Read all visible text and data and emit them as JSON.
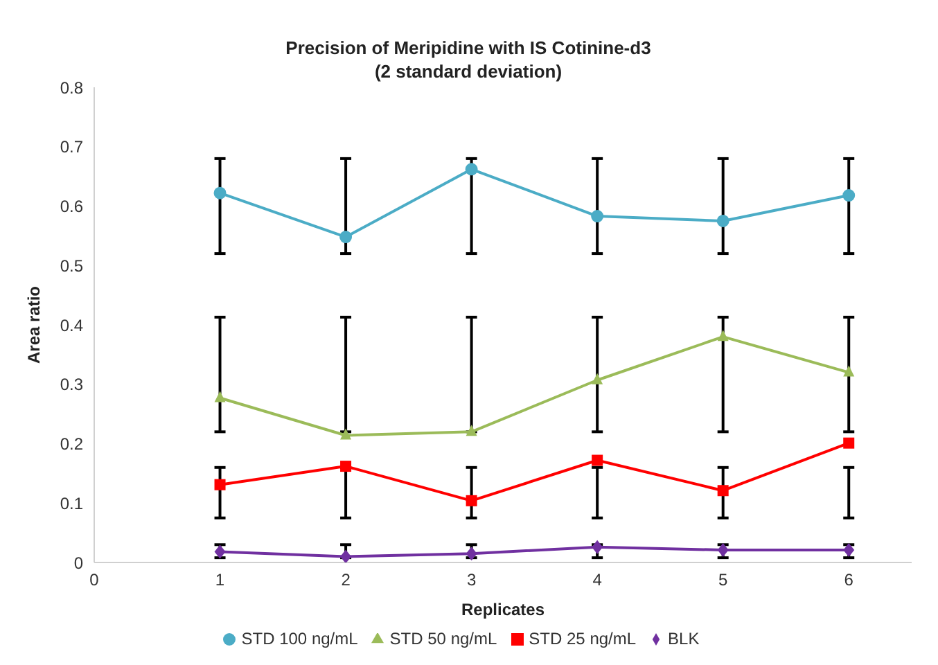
{
  "chart_data": {
    "type": "line",
    "title": "Precision of Meripidine with IS Cotinine-d3\n(2 standard deviation)",
    "xlabel": "Replicates",
    "ylabel": "Area ratio",
    "x": [
      1,
      2,
      3,
      4,
      5,
      6
    ],
    "series": [
      {
        "name": "STD 100 ng/mL",
        "color": "#4bacc6",
        "marker": "circle",
        "values": [
          0.622,
          0.548,
          0.662,
          0.583,
          0.575,
          0.618
        ],
        "errors": [
          [
            0.52,
            0.68
          ],
          [
            0.52,
            0.68
          ],
          [
            0.52,
            0.68
          ],
          [
            0.52,
            0.68
          ],
          [
            0.52,
            0.68
          ],
          [
            0.52,
            0.68
          ]
        ]
      },
      {
        "name": "STD 50 ng/mL",
        "color": "#9bbb59",
        "marker": "triangle",
        "values": [
          0.277,
          0.214,
          0.22,
          0.307,
          0.38,
          0.32
        ],
        "errors": [
          [
            0.22,
            0.413
          ],
          [
            0.22,
            0.413
          ],
          [
            0.22,
            0.413
          ],
          [
            0.22,
            0.413
          ],
          [
            0.22,
            0.413
          ],
          [
            0.22,
            0.413
          ]
        ]
      },
      {
        "name": "STD 25 ng/mL",
        "color": "#ff0000",
        "marker": "square",
        "values": [
          0.131,
          0.162,
          0.104,
          0.172,
          0.121,
          0.201
        ],
        "errors": [
          [
            0.075,
            0.16
          ],
          [
            0.075,
            0.16
          ],
          [
            0.075,
            0.16
          ],
          [
            0.075,
            0.16
          ],
          [
            0.075,
            0.16
          ],
          [
            0.075,
            0.16
          ]
        ]
      },
      {
        "name": "BLK",
        "color": "#7030a0",
        "marker": "diamond",
        "values": [
          0.018,
          0.01,
          0.015,
          0.026,
          0.021,
          0.021
        ],
        "errors": [
          [
            0.008,
            0.03
          ],
          [
            0.008,
            0.03
          ],
          [
            0.008,
            0.03
          ],
          [
            0.008,
            0.03
          ],
          [
            0.008,
            0.03
          ],
          [
            0.008,
            0.03
          ]
        ]
      }
    ],
    "xlim": [
      0,
      6.5
    ],
    "xticks": [
      0,
      1,
      2,
      3,
      4,
      5,
      6
    ],
    "ylim": [
      0,
      0.8
    ],
    "yticks": [
      0,
      0.1,
      0.2,
      0.3,
      0.4,
      0.5,
      0.6,
      0.7,
      0.8
    ],
    "grid": false,
    "legend": "bottom"
  }
}
